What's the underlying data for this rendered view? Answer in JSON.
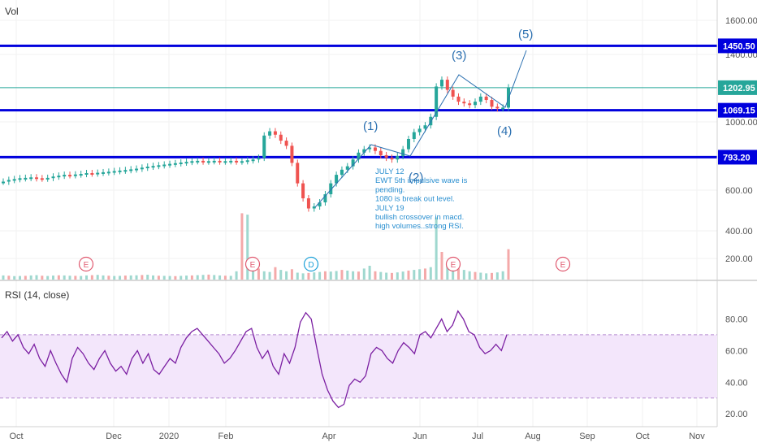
{
  "chart_data": [
    {
      "type": "line",
      "title": "Vol",
      "yticks": [
        "1600.00",
        "1400.00",
        "1000.00",
        "800.00",
        "600.00",
        "400.00",
        "200.00"
      ],
      "ytick_values": [
        1600,
        1400,
        1000,
        800,
        600,
        400,
        200
      ],
      "ylim": [
        90,
        1700
      ],
      "xlabels": [
        "Oct",
        "Dec",
        "2020",
        "Feb",
        "Apr",
        "Jun",
        "Jul",
        "Aug",
        "Sep",
        "Oct",
        "Nov"
      ],
      "series": [
        {
          "values": [
            650,
            660,
            665,
            670,
            672,
            675,
            670,
            668,
            672,
            680,
            685,
            690,
            688,
            692,
            695,
            700,
            698,
            702,
            705,
            708,
            712,
            715,
            718,
            722,
            726,
            732,
            738,
            742,
            746,
            750,
            754,
            758,
            762,
            766,
            770,
            772,
            768,
            770,
            772,
            768,
            770,
            772,
            768,
            770,
            775,
            780,
            790,
            920,
            945,
            925,
            890,
            860,
            760,
            640,
            560,
            510,
            520,
            540,
            580,
            640,
            690,
            720,
            740,
            780,
            820,
            840,
            850,
            830,
            805,
            790,
            780,
            800,
            840,
            900,
            940,
            960,
            980,
            1030,
            1210,
            1250,
            1190,
            1150,
            1120,
            1110,
            1100,
            1120,
            1150,
            1130,
            1090,
            1080,
            1085,
            1205
          ]
        }
      ],
      "hlines": [
        {
          "value": 1450.5,
          "label": "1450.50",
          "color": "#0000dd"
        },
        {
          "value": 1202.95,
          "label": "1202.95",
          "color": "#26a69a"
        },
        {
          "value": 1069.15,
          "label": "1069.15",
          "color": "#0000dd"
        },
        {
          "value": 793.2,
          "label": "793.20",
          "color": "#0000dd"
        }
      ],
      "volume": [
        30,
        28,
        25,
        26,
        27,
        30,
        32,
        28,
        26,
        29,
        31,
        30,
        28,
        27,
        26,
        30,
        32,
        34,
        30,
        28,
        26,
        27,
        29,
        30,
        31,
        33,
        35,
        30,
        28,
        27,
        26,
        25,
        27,
        29,
        30,
        32,
        34,
        36,
        33,
        30,
        28,
        27,
        60,
        480,
        470,
        150,
        80,
        60,
        55,
        90,
        70,
        60,
        75,
        50,
        45,
        48,
        52,
        55,
        60,
        58,
        62,
        70,
        65,
        60,
        58,
        80,
        100,
        60,
        55,
        50,
        48,
        52,
        58,
        65,
        70,
        75,
        80,
        90,
        450,
        200,
        120,
        90,
        80,
        70,
        60,
        55,
        50,
        45,
        48,
        52,
        60,
        220
      ],
      "wave_labels": [
        "(1)",
        "(2)",
        "(3)",
        "(4)",
        "(5)"
      ],
      "events": [
        "E",
        "E",
        "D",
        "E",
        "E"
      ],
      "annotation": [
        "JULY 12",
        "EWT 5th impulsive wave is",
        "pending.",
        "1080 is break out level.",
        "JULY 19",
        "bullish crossover in macd.",
        "high volumes..strong RSI."
      ]
    },
    {
      "type": "line",
      "title": "RSI (14, close)",
      "yticks": [
        "80.00",
        "60.00",
        "40.00",
        "20.00"
      ],
      "ytick_values": [
        80,
        60,
        40,
        20
      ],
      "ylim": [
        17,
        90
      ],
      "band": [
        30,
        70
      ],
      "series": [
        {
          "values": [
            68,
            72,
            66,
            70,
            62,
            58,
            64,
            55,
            50,
            60,
            52,
            45,
            40,
            55,
            62,
            58,
            52,
            48,
            55,
            60,
            52,
            47,
            50,
            45,
            55,
            60,
            52,
            58,
            48,
            45,
            50,
            55,
            52,
            62,
            68,
            72,
            74,
            70,
            66,
            62,
            58,
            52,
            55,
            60,
            66,
            72,
            74,
            62,
            55,
            60,
            50,
            45,
            58,
            52,
            62,
            78,
            84,
            80,
            62,
            45,
            35,
            28,
            24,
            26,
            38,
            42,
            40,
            44,
            58,
            62,
            60,
            55,
            52,
            60,
            65,
            62,
            58,
            70,
            72,
            68,
            74,
            80,
            72,
            76,
            85,
            80,
            72,
            70,
            62,
            58,
            60,
            64,
            60,
            70
          ]
        }
      ]
    }
  ]
}
